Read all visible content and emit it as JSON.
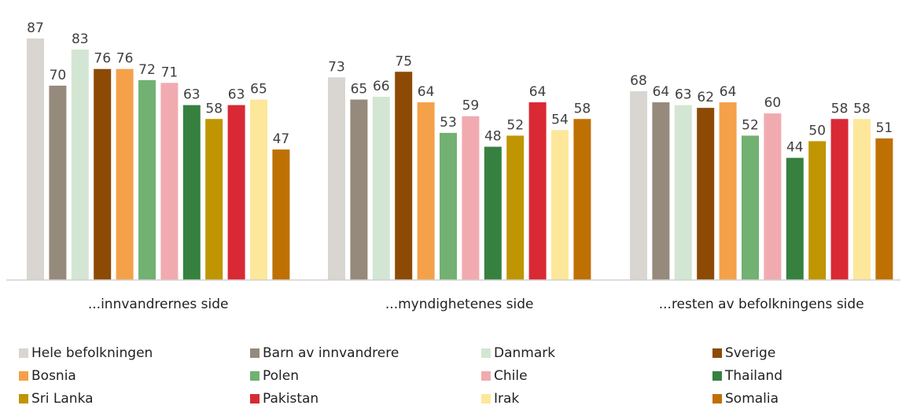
{
  "chart_data": {
    "type": "bar",
    "categories": [
      "...innvandrernes side",
      "...myndighetenes side",
      "...resten av befolkningens side"
    ],
    "series": [
      {
        "name": "Hele befolkningen",
        "color": "#d9d5d1",
        "values": [
          87,
          73,
          68
        ]
      },
      {
        "name": "Barn av innvandrere",
        "color": "#968a7d",
        "values": [
          70,
          65,
          64
        ]
      },
      {
        "name": "Danmark",
        "color": "#d3e6d3",
        "values": [
          83,
          66,
          63
        ]
      },
      {
        "name": "Sverige",
        "color": "#8c4a05",
        "values": [
          76,
          75,
          62
        ]
      },
      {
        "name": "Bosnia",
        "color": "#f4a14a",
        "values": [
          76,
          64,
          64
        ]
      },
      {
        "name": "Polen",
        "color": "#72b172",
        "values": [
          72,
          53,
          52
        ]
      },
      {
        "name": "Chile",
        "color": "#f1abb0",
        "values": [
          71,
          59,
          60
        ]
      },
      {
        "name": "Thailand",
        "color": "#368140",
        "values": [
          63,
          48,
          44
        ]
      },
      {
        "name": "Sri Lanka",
        "color": "#c09502",
        "values": [
          58,
          52,
          50
        ]
      },
      {
        "name": "Pakistan",
        "color": "#d92935",
        "values": [
          63,
          64,
          58
        ]
      },
      {
        "name": "Irak",
        "color": "#fde79a",
        "values": [
          65,
          54,
          58
        ]
      },
      {
        "name": "Somalia",
        "color": "#bf7003",
        "values": [
          47,
          58,
          51
        ]
      }
    ],
    "ylim": [
      0,
      100
    ],
    "grid": false,
    "show_data_labels": true,
    "legend_position": "bottom"
  }
}
